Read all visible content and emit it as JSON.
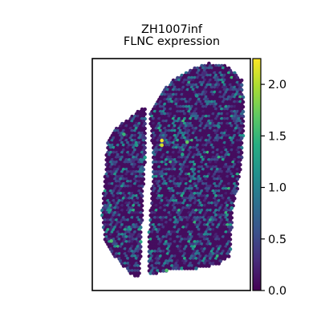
{
  "chart_data": {
    "type": "scatter",
    "title_lines": [
      "ZH1007inf",
      "FLNC expression"
    ],
    "xlabel": "",
    "ylabel": "",
    "grid": false,
    "legend": "none",
    "colormap": "viridis",
    "colorbar": {
      "min": 0.0,
      "max": 2.25,
      "ticks": [
        0.0,
        0.5,
        1.0,
        1.5,
        2.0
      ],
      "tick_labels": [
        "0.0",
        "0.5",
        "1.0",
        "1.5",
        "2.0"
      ],
      "placement": "right"
    },
    "spatial_units": {
      "xlim": [
        0,
        100
      ],
      "ylim": [
        0,
        150
      ],
      "note_y": "0 at top, increasing downward (image orientation)"
    },
    "tissue_regions": [
      {
        "name": "left-strip",
        "polygon": [
          [
            10,
            52
          ],
          [
            16,
            44
          ],
          [
            24,
            38
          ],
          [
            34,
            30
          ],
          [
            34,
            56
          ],
          [
            32,
            90
          ],
          [
            31,
            120
          ],
          [
            30,
            141
          ],
          [
            26,
            141
          ],
          [
            17,
            132
          ],
          [
            8,
            118
          ],
          [
            6,
            100
          ],
          [
            8,
            78
          ],
          [
            9,
            60
          ]
        ]
      },
      {
        "name": "right-mass",
        "polygon": [
          [
            36,
            36
          ],
          [
            41,
            27
          ],
          [
            50,
            14
          ],
          [
            62,
            7
          ],
          [
            74,
            3
          ],
          [
            86,
            5
          ],
          [
            95,
            14
          ],
          [
            96,
            38
          ],
          [
            95,
            62
          ],
          [
            92,
            84
          ],
          [
            89,
            96
          ],
          [
            88,
            114
          ],
          [
            87,
            128
          ],
          [
            80,
            133
          ],
          [
            66,
            136
          ],
          [
            54,
            136
          ],
          [
            44,
            138
          ],
          [
            36,
            140
          ],
          [
            36,
            110
          ],
          [
            38,
            80
          ],
          [
            38,
            56
          ]
        ]
      }
    ],
    "spot_grid": {
      "spacing_x": 1.8,
      "spacing_y": 1.56,
      "background_value": 0.08
    },
    "notable_spots": [
      {
        "x": 44,
        "y": 53,
        "value": 2.2
      },
      {
        "x": 44,
        "y": 56,
        "value": 2.1
      },
      {
        "x": 60,
        "y": 54,
        "value": 1.7
      },
      {
        "x": 20,
        "y": 49,
        "value": 1.5
      },
      {
        "x": 12,
        "y": 118,
        "value": 1.6
      },
      {
        "x": 57,
        "y": 62,
        "value": 1.3
      },
      {
        "x": 47,
        "y": 137,
        "value": 1.6
      },
      {
        "x": 28,
        "y": 56,
        "value": 1.2
      },
      {
        "x": 66,
        "y": 24,
        "value": 1.1
      },
      {
        "x": 80,
        "y": 44,
        "value": 1.0
      }
    ],
    "random_seed": 7
  }
}
